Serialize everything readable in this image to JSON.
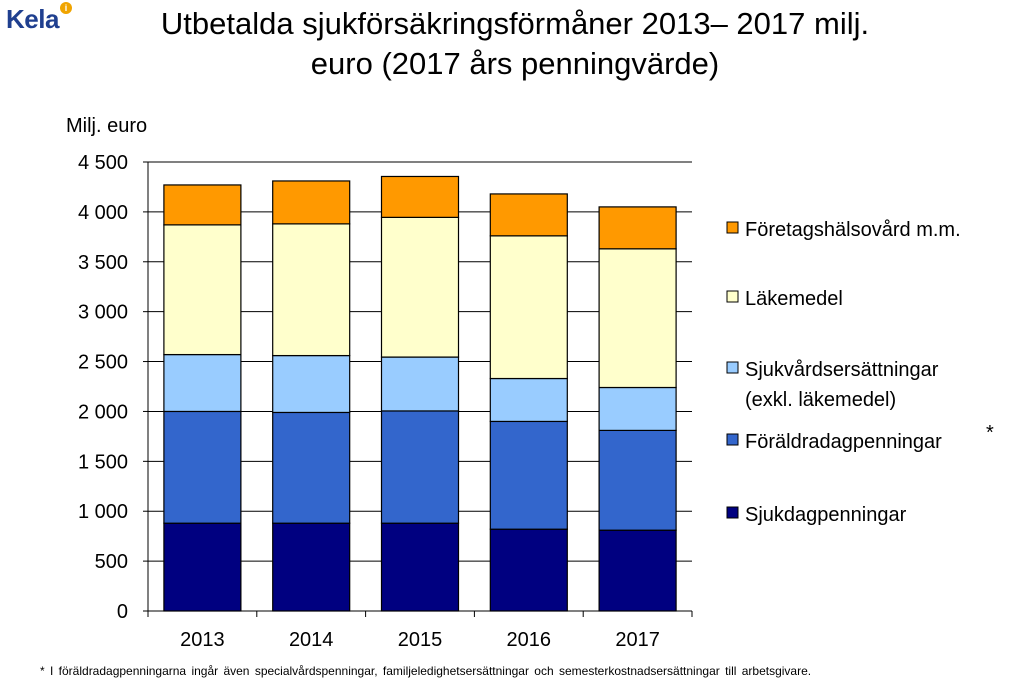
{
  "logo": {
    "text": "Kela"
  },
  "title": {
    "line1": "Utbetalda sjukförsäkringsförmåner 2013– 2017 milj.",
    "line2": "euro (2017 års penningvärde)"
  },
  "chart_data": {
    "type": "bar",
    "stacked": true,
    "ylabel": "Milj. euro",
    "ylim": [
      0,
      4500
    ],
    "yticks": [
      0,
      500,
      1000,
      1500,
      2000,
      2500,
      3000,
      3500,
      4000,
      4500
    ],
    "ytick_labels": [
      "0",
      "500",
      "1 000",
      "1 500",
      "2 000",
      "2 500",
      "3 000",
      "3 500",
      "4 000",
      "4 500"
    ],
    "categories": [
      "2013",
      "2014",
      "2015",
      "2016",
      "2017"
    ],
    "grid": true,
    "legend_position": "right",
    "series": [
      {
        "name": "Sjukdagpenningar",
        "color": "#000080",
        "values": [
          880,
          880,
          880,
          820,
          810
        ]
      },
      {
        "name": "Föräldradagpenningar",
        "color": "#3366cc",
        "values": [
          1120,
          1110,
          1125,
          1080,
          1000
        ]
      },
      {
        "name": "Sjukvårdsersättningar\n(exkl. läkemedel)",
        "color": "#99ccff",
        "values": [
          570,
          570,
          540,
          430,
          430
        ]
      },
      {
        "name": "Läkemedel",
        "color": "#ffffcc",
        "values": [
          1300,
          1320,
          1400,
          1430,
          1390
        ]
      },
      {
        "name": "Företagshälsovård m.m.",
        "color": "#ff9900",
        "values": [
          400,
          430,
          410,
          420,
          420
        ]
      }
    ],
    "legend_asterisk": "*"
  },
  "footnote": "* I föräldradagpenningarna ingår även specialvårdspenningar, familjeledighetsersättningar och semesterkostnadsersättningar till arbetsgivare."
}
